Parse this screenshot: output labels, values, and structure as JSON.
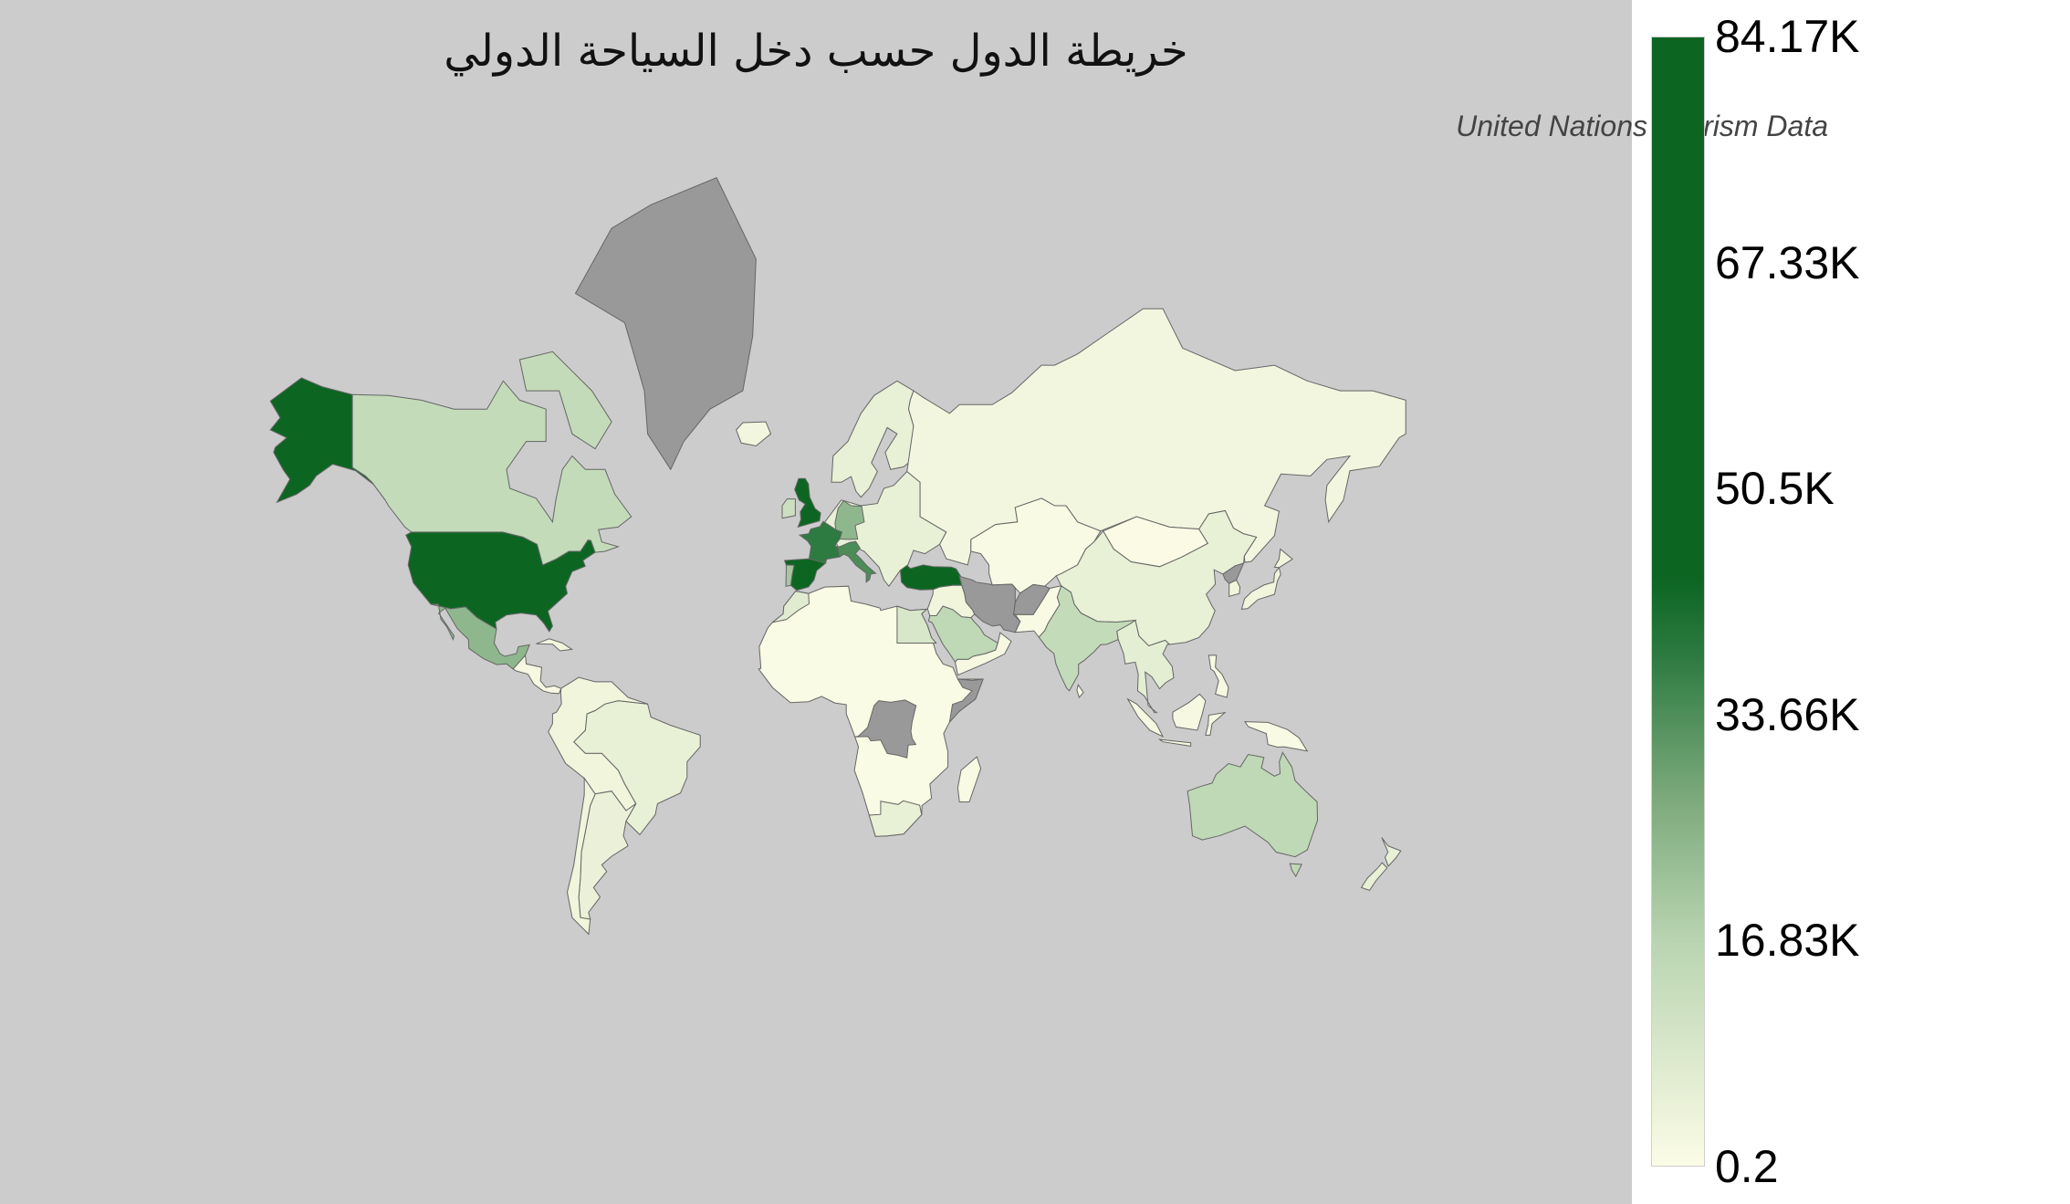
{
  "title": "خريطة الدول حسب دخل السياحة الدولي",
  "subtitle": "United Nations Tourism Data",
  "colors": {
    "background": "#cccccc",
    "no_data": "#999999",
    "border": "#666666",
    "scale": [
      "#fcfce6",
      "#b8d4b0",
      "#7aa87a",
      "#2e7b42",
      "#0c6622"
    ]
  },
  "chart_data": {
    "type": "choropleth",
    "title": "خريطة الدول حسب دخل السياحة الدولي",
    "subtitle": "United Nations Tourism Data",
    "value_range": [
      0.2,
      84170
    ],
    "colorbar": {
      "ticks": [
        "84.17K",
        "67.33K",
        "50.5K",
        "33.66K",
        "16.83K",
        "0.2"
      ],
      "placement": "right"
    },
    "regions": [
      {
        "name": "United States",
        "value": 84170
      },
      {
        "name": "Alaska (United States)",
        "value": 84170
      },
      {
        "name": "Canada",
        "value": 14000
      },
      {
        "name": "Canadian Arctic Islands",
        "value": 14000
      },
      {
        "name": "Greenland",
        "value": null
      },
      {
        "name": "Mexico",
        "value": 24000
      },
      {
        "name": "Central America",
        "value": 1500
      },
      {
        "name": "Cuba",
        "value": 2500
      },
      {
        "name": "Brazil",
        "value": 5000
      },
      {
        "name": "Northern South America",
        "value": 3000
      },
      {
        "name": "Argentina",
        "value": 4500
      },
      {
        "name": "Chile",
        "value": 3000
      },
      {
        "name": "Africa",
        "value": 600
      },
      {
        "name": "Egypt",
        "value": 9000
      },
      {
        "name": "Morocco",
        "value": 7000
      },
      {
        "name": "South Africa",
        "value": 5000
      },
      {
        "name": "Democratic Republic of the Congo",
        "value": null
      },
      {
        "name": "Somalia",
        "value": null
      },
      {
        "name": "Madagascar",
        "value": 800
      },
      {
        "name": "Eastern Europe",
        "value": 5000
      },
      {
        "name": "Scandinavia",
        "value": 5000
      },
      {
        "name": "Iceland",
        "value": 2500
      },
      {
        "name": "Spain",
        "value": 68000
      },
      {
        "name": "Portugal",
        "value": 20000
      },
      {
        "name": "France",
        "value": 38000
      },
      {
        "name": "United Kingdom",
        "value": 70000
      },
      {
        "name": "Ireland",
        "value": 12000
      },
      {
        "name": "Italy",
        "value": 34000
      },
      {
        "name": "Germany",
        "value": 24000
      },
      {
        "name": "Turkey",
        "value": 45000
      },
      {
        "name": "Russia",
        "value": 2500
      },
      {
        "name": "Central Asia",
        "value": 1000
      },
      {
        "name": "Mongolia",
        "value": 300
      },
      {
        "name": "China",
        "value": 5000
      },
      {
        "name": "India",
        "value": 14000
      },
      {
        "name": "Pakistan",
        "value": 800
      },
      {
        "name": "Afghanistan",
        "value": null
      },
      {
        "name": "Iran",
        "value": null
      },
      {
        "name": "Middle East",
        "value": 3000
      },
      {
        "name": "Saudi Arabia",
        "value": 15000
      },
      {
        "name": "Yemen and Oman",
        "value": 1500
      },
      {
        "name": "Southeast Asia",
        "value": 6000
      },
      {
        "name": "Japan",
        "value": 3000
      },
      {
        "name": "Hokkaido (Japan)",
        "value": 3000
      },
      {
        "name": "South Korea",
        "value": 3000
      },
      {
        "name": "North Korea",
        "value": null
      },
      {
        "name": "Sumatra",
        "value": 1500
      },
      {
        "name": "Borneo",
        "value": 1500
      },
      {
        "name": "Java",
        "value": 1500
      },
      {
        "name": "Sulawesi",
        "value": 1500
      },
      {
        "name": "New Guinea",
        "value": 800
      },
      {
        "name": "Philippines",
        "value": 1500
      },
      {
        "name": "Sri Lanka",
        "value": 1000
      },
      {
        "name": "Australia",
        "value": 15000
      },
      {
        "name": "Tasmania (Australia)",
        "value": 15000
      },
      {
        "name": "New Zealand North",
        "value": 5000
      },
      {
        "name": "New Zealand South",
        "value": 5000
      }
    ]
  }
}
